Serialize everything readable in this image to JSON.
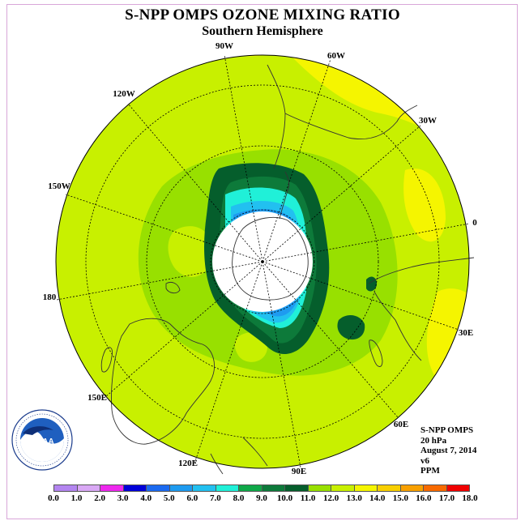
{
  "title": "S-NPP OMPS OZONE MIXING RATIO",
  "subtitle": "Southern Hemisphere",
  "meridian_labels": {
    "lon_90w": "90W",
    "lon_60w": "60W",
    "lon_30w": "30W",
    "lon_0": "0",
    "lon_30e": "30E",
    "lon_60e": "60E",
    "lon_90e": "90E",
    "lon_120e": "120E",
    "lon_150e": "150E",
    "lon_180": "180",
    "lon_150w": "150W",
    "lon_120w": "120W"
  },
  "info": {
    "instrument": "S-NPP OMPS",
    "level": "20 hPa",
    "date": "August 7, 2014",
    "version": "v6",
    "units": "PPM"
  },
  "logo": {
    "text": "NOAA",
    "ring_text": "NATIONAL OCEANIC AND ATMOSPHERIC ADMINISTRATION · U.S. DEPARTMENT OF COMMERCE"
  },
  "colorbar": {
    "ticks": [
      "0.0",
      "1.0",
      "2.0",
      "3.0",
      "4.0",
      "5.0",
      "6.0",
      "7.0",
      "8.0",
      "9.0",
      "10.0",
      "11.0",
      "12.0",
      "13.0",
      "14.0",
      "15.0",
      "16.0",
      "17.0",
      "18.0"
    ],
    "colors": [
      "#b385f0",
      "#d9a8f5",
      "#ee28ee",
      "#0000d9",
      "#1b6af0",
      "#1e9bf0",
      "#22c0f0",
      "#20f0d8",
      "#0fa848",
      "#0d7a3a",
      "#055e2c",
      "#98e000",
      "#c8f000",
      "#f5f500",
      "#f8cf00",
      "#f8a000",
      "#f86a00",
      "#f00000",
      "#8c5530"
    ]
  },
  "legend_levels": {
    "polar_night": "#ffffff",
    "levels_ppm": [
      0,
      1,
      2,
      3,
      4,
      5,
      6,
      7,
      8,
      9,
      10,
      11,
      12,
      13,
      14,
      15,
      16,
      17,
      18
    ]
  }
}
